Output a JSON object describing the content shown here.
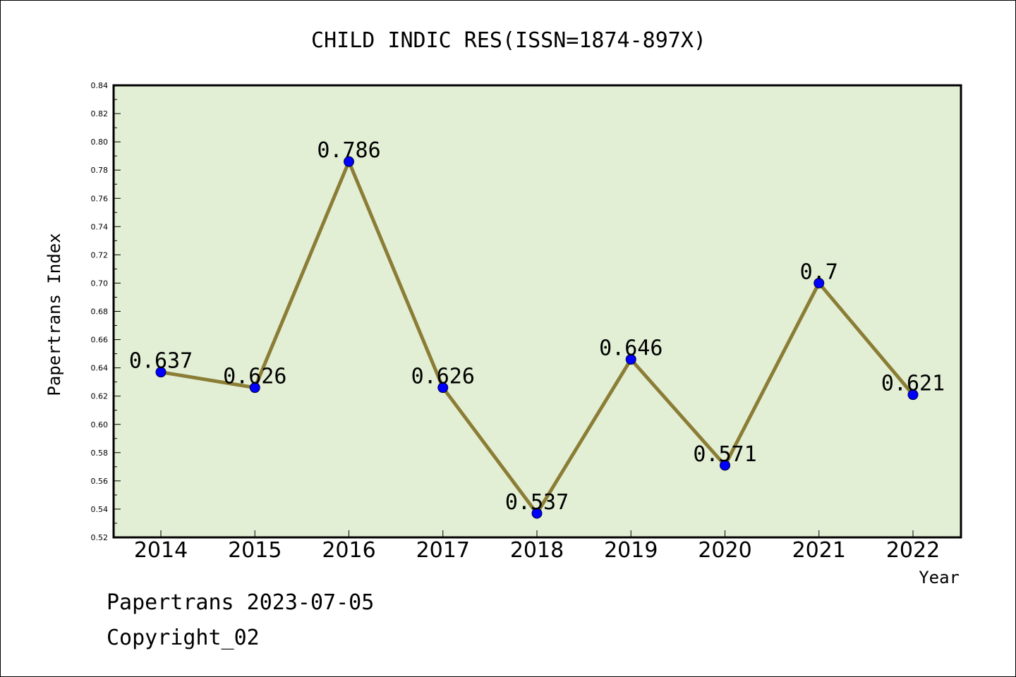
{
  "chart_data": {
    "type": "line",
    "title": "CHILD INDIC RES(ISSN=1874-897X)",
    "xlabel": "Year",
    "ylabel": "Papertrans Index",
    "categories": [
      "2014",
      "2015",
      "2016",
      "2017",
      "2018",
      "2019",
      "2020",
      "2021",
      "2022"
    ],
    "series": [
      {
        "values": [
          0.637,
          0.626,
          0.786,
          0.626,
          0.537,
          0.646,
          0.571,
          0.7,
          0.621
        ],
        "data_labels": [
          "0.637",
          "0.626",
          "0.786",
          "0.626",
          "0.537",
          "0.646",
          "0.571",
          "0.7",
          "0.621"
        ]
      }
    ],
    "ylim": [
      0.52,
      0.84
    ],
    "yticks": [
      "0.52",
      "0.54",
      "0.56",
      "0.58",
      "0.60",
      "0.62",
      "0.64",
      "0.66",
      "0.68",
      "0.70",
      "0.72",
      "0.74",
      "0.76",
      "0.78",
      "0.80",
      "0.82",
      "0.84"
    ],
    "grid": false,
    "legend": "none",
    "colors": {
      "plot_background": "#e2efd5",
      "line": "#8b7d35",
      "marker": "#0000ff",
      "frame": "#000000"
    }
  },
  "footer": {
    "date_text": "Papertrans 2023-07-05",
    "copyright_text": "Copyright_02"
  }
}
